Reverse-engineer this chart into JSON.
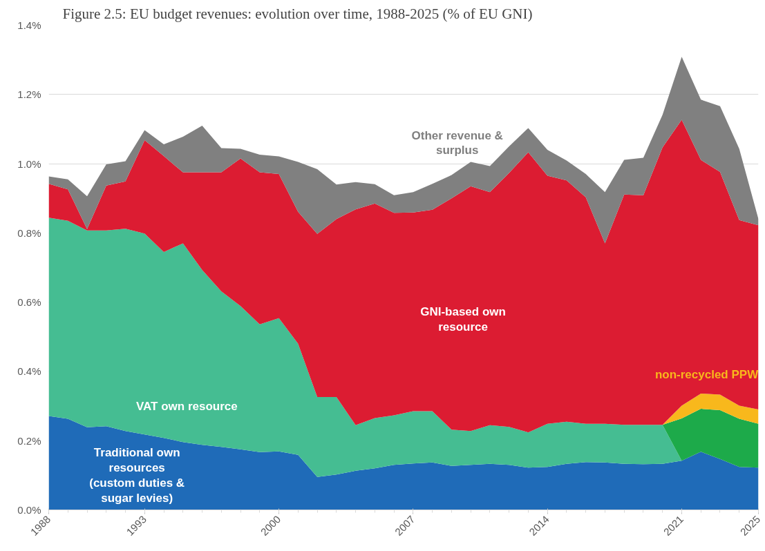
{
  "chart_data": {
    "type": "area",
    "stacked": true,
    "title": "Figure 2.5: EU budget revenues: evolution over time, 1988-2025 (% of EU GNI)",
    "x": [
      1988,
      1989,
      1990,
      1991,
      1992,
      1993,
      1994,
      1995,
      1996,
      1997,
      1998,
      1999,
      2000,
      2001,
      2002,
      2003,
      2004,
      2005,
      2006,
      2007,
      2008,
      2009,
      2010,
      2011,
      2012,
      2013,
      2014,
      2015,
      2016,
      2017,
      2018,
      2019,
      2020,
      2021,
      2022,
      2023,
      2024,
      2025
    ],
    "xlim": [
      1988,
      2025
    ],
    "xticks": [
      1988,
      1993,
      2000,
      2007,
      2014,
      2021,
      2025
    ],
    "ylim": [
      0,
      1.4
    ],
    "yticks": [
      {
        "value": 0,
        "label": "0.0%"
      },
      {
        "value": 0.2,
        "label": "0.2%"
      },
      {
        "value": 0.4,
        "label": "0.4%"
      },
      {
        "value": 0.6,
        "label": "0.6%"
      },
      {
        "value": 0.8,
        "label": "0.8%"
      },
      {
        "value": 1.0,
        "label": "1.0%"
      },
      {
        "value": 1.2,
        "label": "1.2%"
      },
      {
        "value": 1.4,
        "label": "1.4%"
      }
    ],
    "grid": "y",
    "series": [
      {
        "name": "Traditional own resources (custom duties & sugar levies)",
        "color": "#1f6bb8",
        "values": [
          0.271,
          0.263,
          0.239,
          0.242,
          0.228,
          0.218,
          0.208,
          0.196,
          0.188,
          0.182,
          0.175,
          0.167,
          0.169,
          0.159,
          0.095,
          0.102,
          0.113,
          0.12,
          0.13,
          0.134,
          0.137,
          0.127,
          0.13,
          0.133,
          0.13,
          0.122,
          0.124,
          0.133,
          0.138,
          0.137,
          0.133,
          0.132,
          0.133,
          0.142,
          0.168,
          0.147,
          0.124,
          0.122
        ]
      },
      {
        "name": "VAT own resource",
        "color": "#45bd92",
        "values": [
          0.573,
          0.572,
          0.568,
          0.565,
          0.584,
          0.58,
          0.537,
          0.574,
          0.505,
          0.449,
          0.414,
          0.369,
          0.385,
          0.321,
          0.231,
          0.224,
          0.132,
          0.145,
          0.143,
          0.151,
          0.148,
          0.105,
          0.098,
          0.112,
          0.11,
          0.102,
          0.125,
          0.122,
          0.111,
          0.112,
          0.113,
          0.114,
          0.113,
          0,
          0,
          0,
          0,
          0
        ]
      },
      {
        "color": "#1daa4a",
        "values": [
          0,
          0,
          0,
          0,
          0,
          0,
          0,
          0,
          0,
          0,
          0,
          0,
          0,
          0,
          0,
          0,
          0,
          0,
          0,
          0,
          0,
          0,
          0,
          0,
          0,
          0,
          0,
          0,
          0,
          0,
          0,
          0,
          0,
          0.122,
          0.124,
          0.141,
          0.139,
          0.127
        ]
      },
      {
        "name": "non-recycled PPW",
        "color": "#f8b81c",
        "values": [
          0,
          0,
          0,
          0,
          0,
          0,
          0,
          0,
          0,
          0,
          0,
          0,
          0,
          0,
          0,
          0,
          0,
          0,
          0,
          0,
          0,
          0,
          0,
          0,
          0,
          0,
          0,
          0,
          0,
          0,
          0,
          0,
          0,
          0.037,
          0.044,
          0.045,
          0.038,
          0.041
        ]
      },
      {
        "name": "GNI-based own resource",
        "color": "#dc1c32",
        "values": [
          0.098,
          0.091,
          0.004,
          0.13,
          0.137,
          0.27,
          0.277,
          0.205,
          0.282,
          0.344,
          0.426,
          0.439,
          0.416,
          0.381,
          0.471,
          0.514,
          0.623,
          0.62,
          0.585,
          0.574,
          0.582,
          0.668,
          0.707,
          0.673,
          0.733,
          0.809,
          0.716,
          0.697,
          0.654,
          0.521,
          0.665,
          0.663,
          0.801,
          0.826,
          0.675,
          0.643,
          0.536,
          0.532
        ]
      },
      {
        "name": "Other revenue & surplus",
        "color": "#808080",
        "values": [
          0.021,
          0.029,
          0.095,
          0.061,
          0.058,
          0.029,
          0.034,
          0.103,
          0.135,
          0.07,
          0.028,
          0.051,
          0.051,
          0.144,
          0.187,
          0.1,
          0.079,
          0.056,
          0.051,
          0.059,
          0.075,
          0.067,
          0.07,
          0.075,
          0.077,
          0.07,
          0.075,
          0.057,
          0.067,
          0.148,
          0.1,
          0.108,
          0.094,
          0.182,
          0.174,
          0.19,
          0.206,
          0.018
        ]
      }
    ]
  }
}
